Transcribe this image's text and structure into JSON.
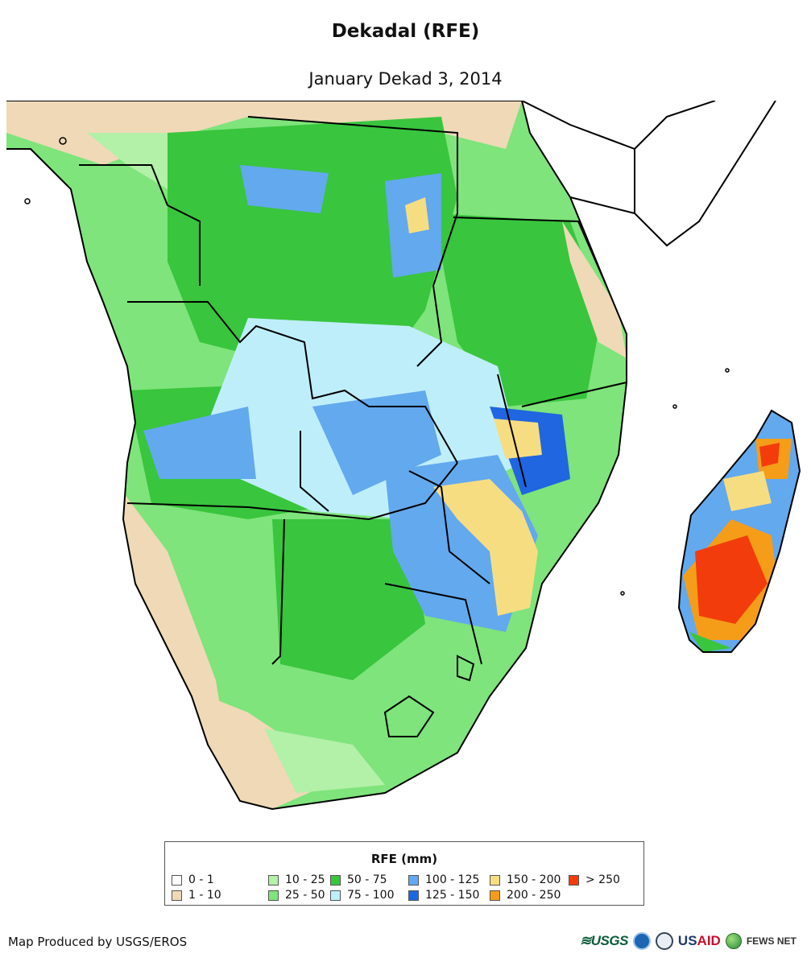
{
  "title": "Dekadal (RFE)",
  "subtitle": "January Dekad 3, 2014",
  "legend": {
    "title": "RFE (mm)",
    "classes": [
      {
        "label": "0 - 1",
        "color": "#ffffff"
      },
      {
        "label": "1 - 10",
        "color": "#efd9b7"
      },
      {
        "label": "10 - 25",
        "color": "#b3f0a8"
      },
      {
        "label": "25 - 50",
        "color": "#7ee47b"
      },
      {
        "label": "50 - 75",
        "color": "#39c53d"
      },
      {
        "label": "75 - 100",
        "color": "#bfeefb"
      },
      {
        "label": "100 - 125",
        "color": "#62a9ee"
      },
      {
        "label": "125 - 150",
        "color": "#1f66e0"
      },
      {
        "label": "150 - 200",
        "color": "#f7dd82"
      },
      {
        "label": "200 - 250",
        "color": "#f59d19"
      },
      {
        "label": "> 250",
        "color": "#f33c0b"
      }
    ]
  },
  "credit": "Map Produced by USGS/EROS",
  "logos": {
    "usgs": "≋USGS",
    "usaid_blue": "US",
    "usaid_red": "AID",
    "fews": "FEWS NET"
  },
  "icons": [
    "usgs-logo-icon",
    "noaa-logo-icon",
    "seal-logo-icon",
    "usaid-logo-icon",
    "fews-globe-icon"
  ]
}
